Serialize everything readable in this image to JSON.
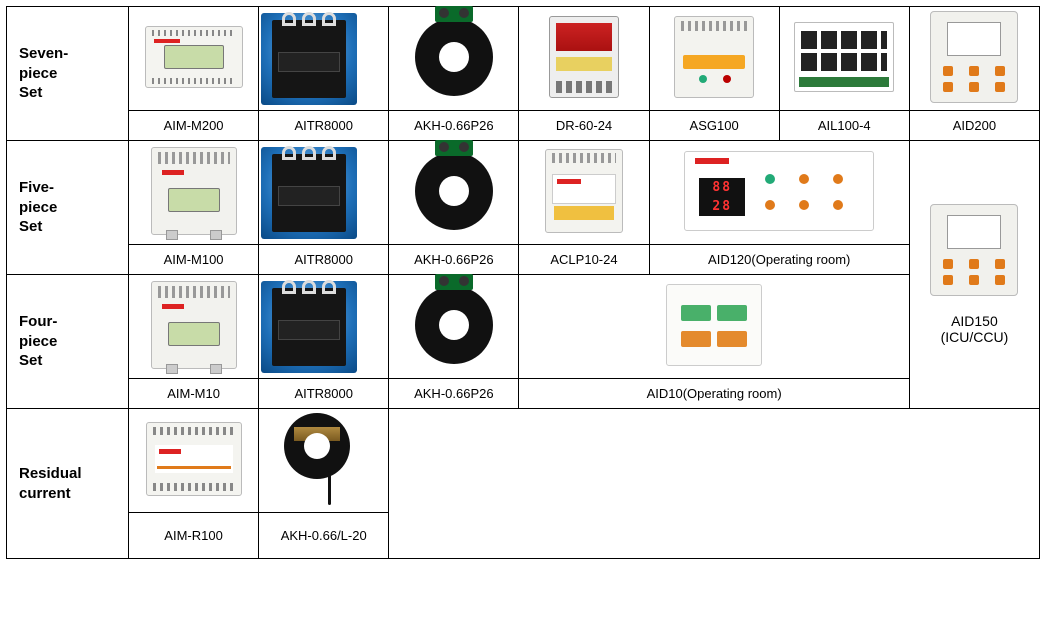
{
  "background_color": "#ffffff",
  "border_color": "#000000",
  "font_family": "Arial",
  "header_font_weight": "bold",
  "rows": {
    "seven": {
      "header": "Seven-\npiece\nSet",
      "items": [
        "AIM-M200",
        "AITR8000",
        "AKH-0.66P26",
        "DR-60-24",
        "ASG100",
        "AIL100-4",
        "AID200"
      ]
    },
    "five": {
      "header": "Five-\npiece\nSet",
      "items": [
        "AIM-M100",
        "AITR8000",
        "AKH-0.66P26",
        "ACLP10-24",
        "AID120(Operating room)"
      ]
    },
    "four": {
      "header": "Four-\npiece\nSet",
      "items": [
        "AIM-M10",
        "AITR8000",
        "AKH-0.66P26",
        "AID10(Operating room)"
      ]
    },
    "residual": {
      "header": "Residual\ncurrent",
      "items": [
        "AIM-R100",
        "AKH-0.66/L-20"
      ]
    },
    "side": {
      "label": "AID150\n(ICU/CCU)"
    }
  },
  "aid120_seg": [
    "88",
    "28"
  ],
  "colors": {
    "brand_red": "#d22222",
    "orange": "#e07a1a",
    "green": "#2aa766",
    "lcd": "#c8dca8",
    "blue_grad_inner": "#7fbef0",
    "blue_grad_outer": "#0a4a86",
    "yellow": "#f0c040"
  }
}
